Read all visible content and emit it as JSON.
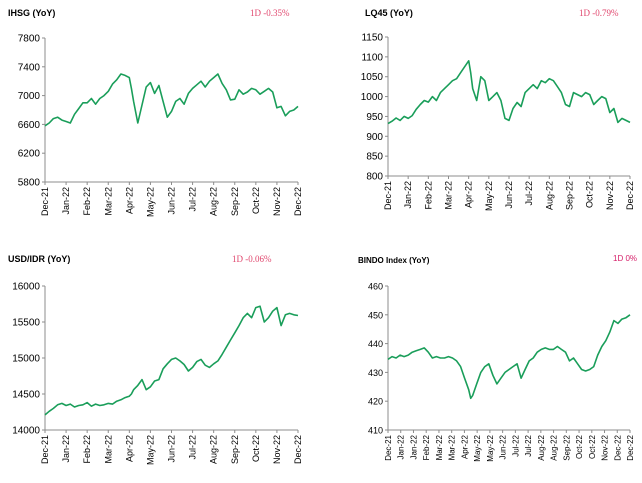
{
  "chart_data": [
    {
      "type": "line",
      "title": "IHSG (YoY)",
      "change_label": "1D -0.35%",
      "change_color": "#e0456c",
      "line_color": "#1a9e5a",
      "x_ticks": [
        "Dec-21",
        "Jan-22",
        "Feb-22",
        "Mar-22",
        "Apr-22",
        "May-22",
        "Jun-22",
        "Jul-22",
        "Aug-22",
        "Sep-22",
        "Oct-22",
        "Nov-22",
        "Dec-22"
      ],
      "y_ticks": [
        7800,
        7400,
        7000,
        6600,
        6200,
        5800
      ],
      "ylim": [
        5800,
        7800
      ],
      "grid": false,
      "x": [
        0,
        0.2,
        0.4,
        0.6,
        0.8,
        1,
        1.2,
        1.4,
        1.6,
        1.8,
        2,
        2.2,
        2.4,
        2.6,
        2.8,
        3,
        3.2,
        3.4,
        3.6,
        3.8,
        4,
        4.1,
        4.2,
        4.4,
        4.6,
        4.8,
        5,
        5.2,
        5.4,
        5.6,
        5.8,
        6,
        6.2,
        6.4,
        6.6,
        6.8,
        7,
        7.2,
        7.4,
        7.6,
        7.8,
        8,
        8.2,
        8.4,
        8.6,
        8.8,
        9,
        9.2,
        9.4,
        9.6,
        9.8,
        10,
        10.2,
        10.4,
        10.6,
        10.8,
        11,
        11.2,
        11.4,
        11.6,
        11.8,
        12
      ],
      "values": [
        6580,
        6620,
        6680,
        6700,
        6660,
        6640,
        6620,
        6740,
        6820,
        6900,
        6900,
        6960,
        6880,
        6960,
        7000,
        7060,
        7160,
        7220,
        7300,
        7280,
        7250,
        7100,
        6920,
        6620,
        6870,
        7120,
        7180,
        7030,
        7140,
        6920,
        6700,
        6780,
        6920,
        6960,
        6880,
        7030,
        7100,
        7150,
        7200,
        7120,
        7200,
        7250,
        7300,
        7170,
        7080,
        6940,
        6950,
        7080,
        7020,
        7050,
        7100,
        7080,
        7020,
        7060,
        7100,
        7050,
        6830,
        6850,
        6720,
        6780,
        6800,
        6850
      ]
    },
    {
      "type": "line",
      "title": "LQ45 (YoY)",
      "change_label": "1D -0.79%",
      "change_color": "#e0456c",
      "line_color": "#1a9e5a",
      "x_ticks": [
        "Dec-21",
        "Jan-22",
        "Feb-22",
        "Mar-22",
        "Apr-22",
        "May-22",
        "Jun-22",
        "Jul-22",
        "Aug-22",
        "Sep-22",
        "Oct-22",
        "Nov-22",
        "Dec-22"
      ],
      "y_ticks": [
        1150,
        1100,
        1050,
        1000,
        950,
        900,
        850,
        800
      ],
      "ylim": [
        800,
        1150
      ],
      "grid": false,
      "x": [
        0,
        0.2,
        0.4,
        0.6,
        0.8,
        1,
        1.2,
        1.4,
        1.6,
        1.8,
        2,
        2.2,
        2.4,
        2.6,
        2.8,
        3,
        3.2,
        3.4,
        3.6,
        3.8,
        4,
        4.1,
        4.2,
        4.4,
        4.6,
        4.8,
        5,
        5.2,
        5.4,
        5.6,
        5.8,
        6,
        6.2,
        6.4,
        6.6,
        6.8,
        7,
        7.2,
        7.4,
        7.6,
        7.8,
        8,
        8.2,
        8.4,
        8.6,
        8.8,
        9,
        9.2,
        9.4,
        9.6,
        9.8,
        10,
        10.2,
        10.4,
        10.6,
        10.8,
        11,
        11.2,
        11.4,
        11.6,
        11.8,
        12
      ],
      "values": [
        932,
        938,
        946,
        940,
        950,
        945,
        952,
        968,
        980,
        990,
        986,
        1000,
        990,
        1010,
        1020,
        1030,
        1040,
        1045,
        1060,
        1075,
        1090,
        1060,
        1020,
        990,
        1050,
        1040,
        990,
        1000,
        1010,
        990,
        945,
        940,
        970,
        985,
        975,
        1010,
        1020,
        1030,
        1020,
        1040,
        1035,
        1045,
        1040,
        1025,
        1010,
        980,
        975,
        1010,
        1005,
        1000,
        1010,
        1005,
        980,
        990,
        1000,
        995,
        960,
        970,
        935,
        945,
        940,
        935
      ]
    },
    {
      "type": "line",
      "title": "USD/IDR (YoY)",
      "change_label": "1D -0.06%",
      "change_color": "#e0456c",
      "line_color": "#1a9e5a",
      "x_ticks": [
        "Dec-21",
        "Jan-22",
        "Feb-22",
        "Mar-22",
        "Apr-22",
        "May-22",
        "Jun-22",
        "Jul-22",
        "Aug-22",
        "Sep-22",
        "Oct-22",
        "Nov-22",
        "Dec-22"
      ],
      "y_ticks": [
        16000,
        15500,
        15000,
        14500,
        14000
      ],
      "ylim": [
        14000,
        16000
      ],
      "grid": false,
      "x": [
        0,
        0.2,
        0.4,
        0.6,
        0.8,
        1,
        1.2,
        1.4,
        1.6,
        1.8,
        2,
        2.2,
        2.4,
        2.6,
        2.8,
        3,
        3.2,
        3.4,
        3.6,
        3.8,
        4,
        4.1,
        4.2,
        4.4,
        4.6,
        4.8,
        5,
        5.2,
        5.4,
        5.6,
        5.8,
        6,
        6.2,
        6.4,
        6.6,
        6.8,
        7,
        7.2,
        7.4,
        7.6,
        7.8,
        8,
        8.2,
        8.4,
        8.6,
        8.8,
        9,
        9.2,
        9.4,
        9.6,
        9.8,
        10,
        10.2,
        10.4,
        10.6,
        10.8,
        11,
        11.2,
        11.4,
        11.6,
        11.8,
        12
      ],
      "values": [
        14210,
        14260,
        14300,
        14350,
        14370,
        14340,
        14360,
        14320,
        14340,
        14350,
        14380,
        14330,
        14360,
        14340,
        14350,
        14370,
        14360,
        14400,
        14420,
        14450,
        14470,
        14500,
        14560,
        14620,
        14700,
        14560,
        14600,
        14680,
        14700,
        14850,
        14920,
        14980,
        15000,
        14960,
        14910,
        14820,
        14870,
        14950,
        14980,
        14900,
        14870,
        14920,
        14960,
        15050,
        15150,
        15250,
        15350,
        15450,
        15560,
        15620,
        15560,
        15700,
        15720,
        15500,
        15560,
        15650,
        15700,
        15450,
        15600,
        15620,
        15600,
        15590
      ]
    },
    {
      "type": "line",
      "title": "BINDO Index (YoY)",
      "change_label": "1D 0%",
      "change_color": "#d6206a",
      "line_color": "#1a9e5a",
      "x_ticks": [
        "Dec-21",
        "Jan-22",
        "Jan-22",
        "Feb-22",
        "Mar-22",
        "Mar-22",
        "Apr-22",
        "May-22",
        "May-22",
        "Jun-22",
        "Jul-22",
        "Jul-22",
        "Aug-22",
        "Aug-22",
        "Sep-22",
        "Oct-22",
        "Oct-22",
        "Nov-22",
        "Dec-22",
        "Dec-22"
      ],
      "y_ticks": [
        460,
        450,
        440,
        430,
        420,
        410
      ],
      "ylim": [
        410,
        460
      ],
      "grid": false,
      "x": [
        0,
        0.2,
        0.4,
        0.6,
        0.8,
        1,
        1.2,
        1.4,
        1.6,
        1.8,
        2,
        2.2,
        2.4,
        2.6,
        2.8,
        3,
        3.2,
        3.4,
        3.6,
        3.8,
        4,
        4.1,
        4.2,
        4.4,
        4.6,
        4.8,
        5,
        5.2,
        5.4,
        5.6,
        5.8,
        6,
        6.2,
        6.4,
        6.6,
        6.8,
        7,
        7.2,
        7.4,
        7.6,
        7.8,
        8,
        8.2,
        8.4,
        8.6,
        8.8,
        9,
        9.2,
        9.4,
        9.6,
        9.8,
        10,
        10.2,
        10.4,
        10.6,
        10.8,
        11,
        11.2,
        11.4,
        11.6,
        11.8,
        12
      ],
      "values": [
        434.5,
        435.5,
        435,
        436,
        435.5,
        436,
        437,
        437.5,
        438,
        438.5,
        437,
        435,
        435.5,
        435,
        435,
        435.5,
        435,
        434,
        432,
        428,
        424,
        421,
        422,
        426,
        430,
        432,
        433,
        429,
        426,
        428,
        430,
        431,
        432,
        433,
        428,
        431,
        434,
        435,
        437,
        438,
        438.5,
        438,
        438,
        439,
        438,
        437,
        434,
        435,
        433,
        431,
        430.5,
        431,
        432,
        436,
        439,
        441,
        444,
        448,
        447,
        448.5,
        449,
        450
      ]
    }
  ]
}
